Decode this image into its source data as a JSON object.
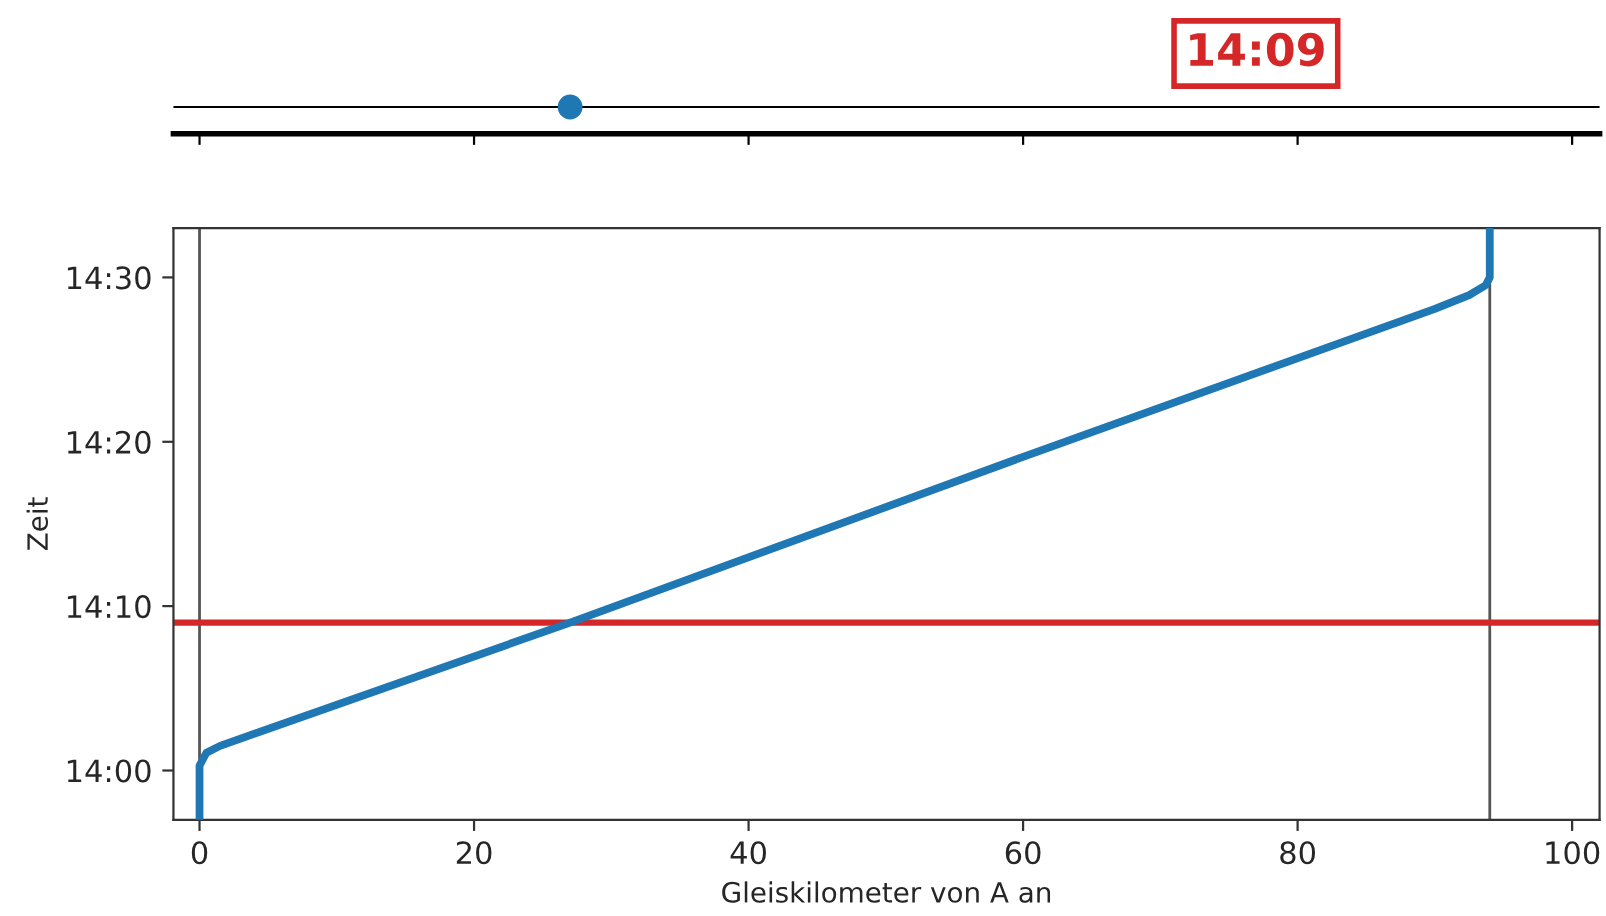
{
  "chart_data": [
    {
      "type": "other",
      "annotations": [
        "14:09"
      ]
    },
    {
      "type": "line",
      "xlabel": "Gleiskilometer von A an",
      "ylabel": "Zeit",
      "series": [
        {
          "color": "#1f77b4",
          "x": [
            0,
            0,
            0.5,
            1.5,
            27,
            60,
            90,
            92.5,
            93.7,
            94,
            94
          ],
          "values": [
            13.95,
            14.005,
            14.018,
            14.025,
            14.15,
            14.318,
            14.468,
            14.482,
            14.492,
            14.5,
            14.55
          ]
        }
      ],
      "xlim": [
        -1.9,
        102
      ],
      "ylim": [
        13.95,
        14.55
      ],
      "xticks": [
        0,
        20,
        40,
        60,
        80,
        100
      ],
      "yticks": [
        {
          "value": 14.0,
          "label": "14:00"
        },
        {
          "value": 14.1667,
          "label": "14:10"
        },
        {
          "value": 14.3333,
          "label": "14:20"
        },
        {
          "value": 14.5,
          "label": "14:30"
        }
      ],
      "grid": false,
      "marker": "none",
      "line_style": "solid",
      "ref_lines": [
        {
          "axis": "y",
          "value": 14.15,
          "color": "#d62728"
        },
        {
          "axis": "x",
          "value": 0,
          "color": "#555555"
        },
        {
          "axis": "x",
          "value": 94,
          "color": "#555555"
        }
      ]
    }
  ]
}
